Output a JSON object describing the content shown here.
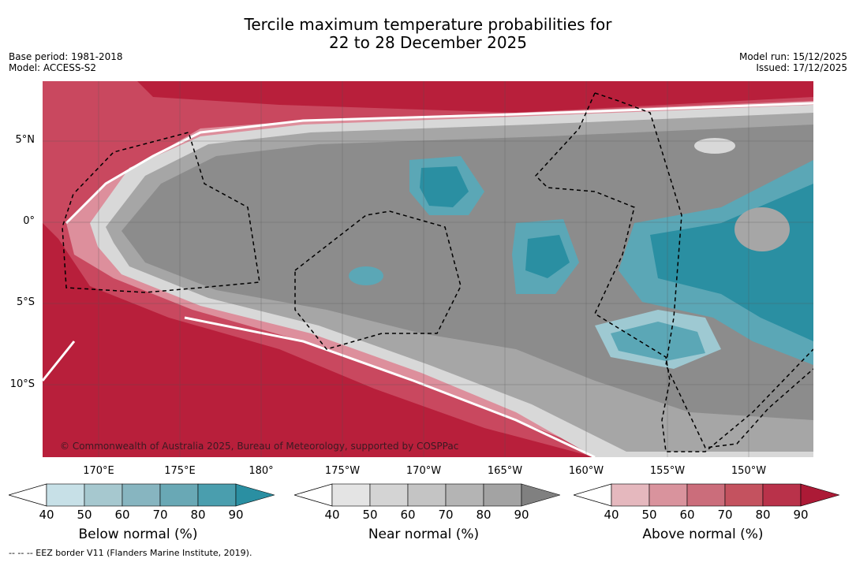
{
  "title": {
    "line1": "Tercile maximum temperature probabilities for",
    "line2": "22 to 28 December 2025"
  },
  "meta": {
    "base_period": "Base period: 1981-2018",
    "model": "Model: ACCESS-S2",
    "model_run": "Model run: 15/12/2025",
    "issued": "Issued: 17/12/2025"
  },
  "map": {
    "copyright": "© Commonwealth of Australia 2025, Bureau of Meteorology, supported by COSPPac",
    "lat_labels": [
      "5°N",
      "0°",
      "5°S",
      "10°S"
    ],
    "lon_labels": [
      "170°E",
      "175°E",
      "180°",
      "175°W",
      "170°W",
      "165°W",
      "160°W",
      "155°W",
      "150°W"
    ],
    "colors": {
      "above_strong": "#b81f3b",
      "above_mid": "#c9485f",
      "above_light": "#dd8f9c",
      "near_dark": "#8c8c8c",
      "near_mid": "#a6a6a6",
      "near_light": "#d0d0d0",
      "below_strong": "#2a8fa2",
      "below_mid": "#5ba7b6",
      "below_light": "#9ec9d2"
    }
  },
  "colorbars": [
    {
      "label": "Below normal (%)",
      "ticks": [
        "40",
        "50",
        "60",
        "70",
        "80",
        "90"
      ],
      "colors": [
        "#c7e0e7",
        "#a6c8cf",
        "#87b5c0",
        "#69a8b5",
        "#4a9eae",
        "#2a8fa2"
      ]
    },
    {
      "label": "Near normal (%)",
      "ticks": [
        "40",
        "50",
        "60",
        "70",
        "80",
        "90"
      ],
      "colors": [
        "#e4e4e4",
        "#d4d4d4",
        "#c4c4c4",
        "#b4b4b4",
        "#a3a3a3",
        "#808080"
      ]
    },
    {
      "label": "Above normal (%)",
      "ticks": [
        "40",
        "50",
        "60",
        "70",
        "80",
        "90"
      ],
      "colors": [
        "#e5b8be",
        "#d9939d",
        "#cb6d7b",
        "#c4525f",
        "#b9324a",
        "#ac1a36"
      ]
    }
  ],
  "footer": "--  --  -- EEZ border V11 (Flanders Marine Institute, 2019)."
}
